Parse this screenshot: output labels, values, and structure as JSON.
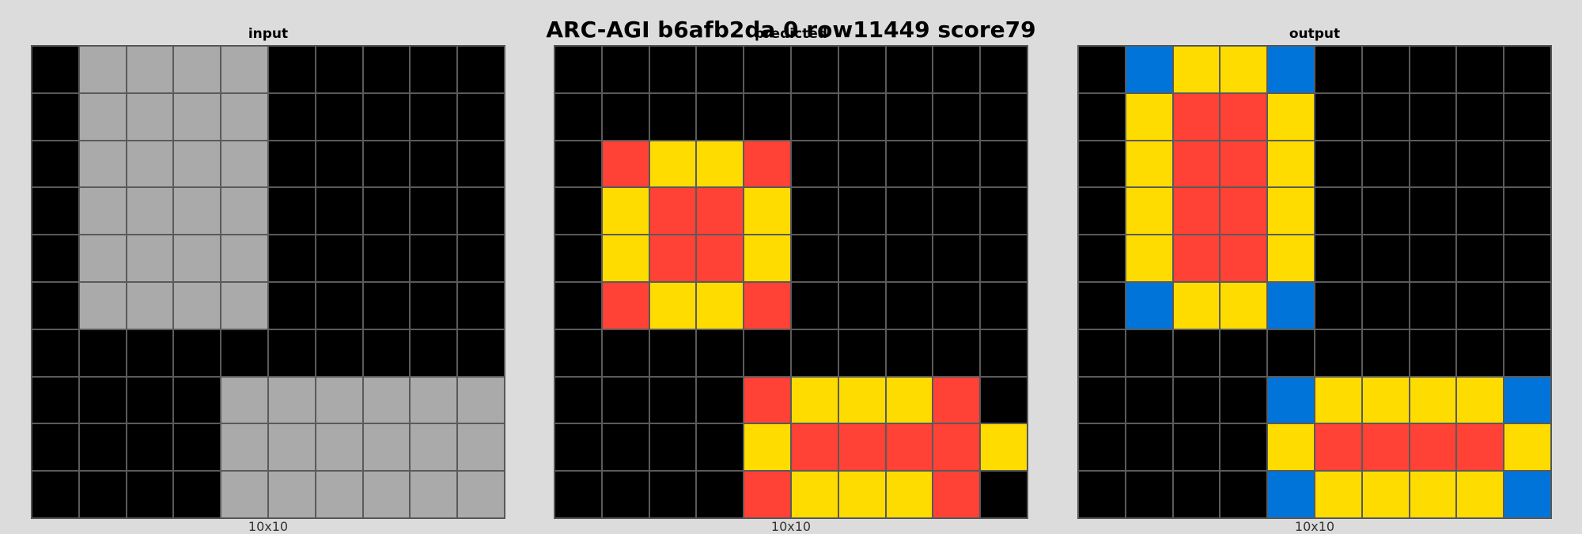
{
  "title": "ARC-AGI b6afb2da 0 row11449 score79",
  "colors": {
    "0": "#000000",
    "1": "#0074D9",
    "2": "#FF4136",
    "4": "#FFDC00",
    "5": "#AAAAAA"
  },
  "panels": [
    {
      "key": "input",
      "label": "input",
      "size_label": "10x10",
      "grid": [
        [
          0,
          5,
          5,
          5,
          5,
          0,
          0,
          0,
          0,
          0
        ],
        [
          0,
          5,
          5,
          5,
          5,
          0,
          0,
          0,
          0,
          0
        ],
        [
          0,
          5,
          5,
          5,
          5,
          0,
          0,
          0,
          0,
          0
        ],
        [
          0,
          5,
          5,
          5,
          5,
          0,
          0,
          0,
          0,
          0
        ],
        [
          0,
          5,
          5,
          5,
          5,
          0,
          0,
          0,
          0,
          0
        ],
        [
          0,
          5,
          5,
          5,
          5,
          0,
          0,
          0,
          0,
          0
        ],
        [
          0,
          0,
          0,
          0,
          0,
          0,
          0,
          0,
          0,
          0
        ],
        [
          0,
          0,
          0,
          0,
          5,
          5,
          5,
          5,
          5,
          5
        ],
        [
          0,
          0,
          0,
          0,
          5,
          5,
          5,
          5,
          5,
          5
        ],
        [
          0,
          0,
          0,
          0,
          5,
          5,
          5,
          5,
          5,
          5
        ]
      ]
    },
    {
      "key": "predicted",
      "label": "predicted",
      "size_label": "10x10",
      "grid": [
        [
          0,
          0,
          0,
          0,
          0,
          0,
          0,
          0,
          0,
          0
        ],
        [
          0,
          0,
          0,
          0,
          0,
          0,
          0,
          0,
          0,
          0
        ],
        [
          0,
          2,
          4,
          4,
          2,
          0,
          0,
          0,
          0,
          0
        ],
        [
          0,
          4,
          2,
          2,
          4,
          0,
          0,
          0,
          0,
          0
        ],
        [
          0,
          4,
          2,
          2,
          4,
          0,
          0,
          0,
          0,
          0
        ],
        [
          0,
          2,
          4,
          4,
          2,
          0,
          0,
          0,
          0,
          0
        ],
        [
          0,
          0,
          0,
          0,
          0,
          0,
          0,
          0,
          0,
          0
        ],
        [
          0,
          0,
          0,
          0,
          2,
          4,
          4,
          4,
          2,
          0
        ],
        [
          0,
          0,
          0,
          0,
          4,
          2,
          2,
          2,
          2,
          4
        ],
        [
          0,
          0,
          0,
          0,
          2,
          4,
          4,
          4,
          2,
          0
        ]
      ]
    },
    {
      "key": "output",
      "label": "output",
      "size_label": "10x10",
      "grid": [
        [
          0,
          1,
          4,
          4,
          1,
          0,
          0,
          0,
          0,
          0
        ],
        [
          0,
          4,
          2,
          2,
          4,
          0,
          0,
          0,
          0,
          0
        ],
        [
          0,
          4,
          2,
          2,
          4,
          0,
          0,
          0,
          0,
          0
        ],
        [
          0,
          4,
          2,
          2,
          4,
          0,
          0,
          0,
          0,
          0
        ],
        [
          0,
          4,
          2,
          2,
          4,
          0,
          0,
          0,
          0,
          0
        ],
        [
          0,
          1,
          4,
          4,
          1,
          0,
          0,
          0,
          0,
          0
        ],
        [
          0,
          0,
          0,
          0,
          0,
          0,
          0,
          0,
          0,
          0
        ],
        [
          0,
          0,
          0,
          0,
          1,
          4,
          4,
          4,
          4,
          1
        ],
        [
          0,
          0,
          0,
          0,
          4,
          2,
          2,
          2,
          2,
          4
        ],
        [
          0,
          0,
          0,
          0,
          1,
          4,
          4,
          4,
          4,
          1
        ]
      ]
    }
  ]
}
